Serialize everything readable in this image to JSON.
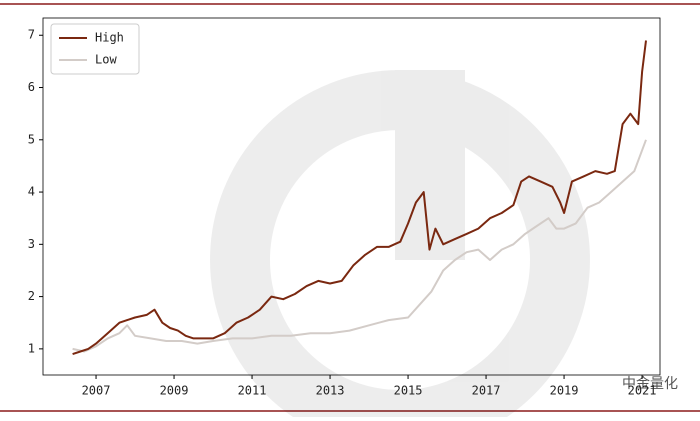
{
  "chart_data": {
    "type": "line",
    "watermark": "中金量化",
    "series": [
      {
        "name": "High",
        "color": "#7a2810",
        "x": [
          2006.4,
          2006.6,
          2006.8,
          2007.0,
          2007.3,
          2007.6,
          2007.8,
          2008.0,
          2008.3,
          2008.5,
          2008.7,
          2008.9,
          2009.1,
          2009.3,
          2009.5,
          2009.7,
          2010.0,
          2010.3,
          2010.6,
          2010.9,
          2011.2,
          2011.5,
          2011.8,
          2012.1,
          2012.4,
          2012.7,
          2013.0,
          2013.3,
          2013.6,
          2013.9,
          2014.2,
          2014.5,
          2014.8,
          2015.0,
          2015.2,
          2015.4,
          2015.55,
          2015.7,
          2015.9,
          2016.2,
          2016.5,
          2016.8,
          2017.1,
          2017.4,
          2017.7,
          2017.9,
          2018.1,
          2018.4,
          2018.7,
          2018.9,
          2019.0,
          2019.2,
          2019.5,
          2019.8,
          2020.1,
          2020.3,
          2020.5,
          2020.7,
          2020.9,
          2021.0,
          2021.1
        ],
        "values": [
          0.9,
          0.95,
          1.0,
          1.1,
          1.3,
          1.5,
          1.55,
          1.6,
          1.65,
          1.75,
          1.5,
          1.4,
          1.35,
          1.25,
          1.2,
          1.2,
          1.2,
          1.3,
          1.5,
          1.6,
          1.75,
          2.0,
          1.95,
          2.05,
          2.2,
          2.3,
          2.25,
          2.3,
          2.6,
          2.8,
          2.95,
          2.95,
          3.05,
          3.4,
          3.8,
          4.0,
          2.9,
          3.3,
          3.0,
          3.1,
          3.2,
          3.3,
          3.5,
          3.6,
          3.75,
          4.2,
          4.3,
          4.2,
          4.1,
          3.8,
          3.6,
          4.2,
          4.3,
          4.4,
          4.35,
          4.4,
          5.3,
          5.5,
          5.3,
          6.3,
          6.9
        ]
      },
      {
        "name": "Low",
        "color": "#d3ccc8",
        "x": [
          2006.4,
          2006.7,
          2007.0,
          2007.3,
          2007.6,
          2007.8,
          2008.0,
          2008.4,
          2008.8,
          2009.2,
          2009.6,
          2010.0,
          2010.5,
          2011.0,
          2011.5,
          2012.0,
          2012.5,
          2013.0,
          2013.5,
          2014.0,
          2014.5,
          2015.0,
          2015.3,
          2015.6,
          2015.9,
          2016.2,
          2016.5,
          2016.8,
          2017.1,
          2017.4,
          2017.7,
          2018.0,
          2018.3,
          2018.6,
          2018.8,
          2019.0,
          2019.3,
          2019.6,
          2019.9,
          2020.2,
          2020.5,
          2020.8,
          2021.1
        ],
        "values": [
          1.0,
          0.95,
          1.05,
          1.2,
          1.3,
          1.45,
          1.25,
          1.2,
          1.15,
          1.15,
          1.1,
          1.15,
          1.2,
          1.2,
          1.25,
          1.25,
          1.3,
          1.3,
          1.35,
          1.45,
          1.55,
          1.6,
          1.85,
          2.1,
          2.5,
          2.7,
          2.85,
          2.9,
          2.7,
          2.9,
          3.0,
          3.2,
          3.35,
          3.5,
          3.3,
          3.3,
          3.4,
          3.7,
          3.8,
          4.0,
          4.2,
          4.4,
          5.0
        ]
      }
    ],
    "xlim": [
      2005.64,
      2021.46
    ],
    "xticks": [
      2007,
      2009,
      2011,
      2013,
      2015,
      2017,
      2019,
      2021
    ],
    "ylim": [
      0.5,
      7.33
    ],
    "yticks": [
      1,
      2,
      3,
      4,
      5,
      6,
      7
    ],
    "legend": "upper left"
  }
}
